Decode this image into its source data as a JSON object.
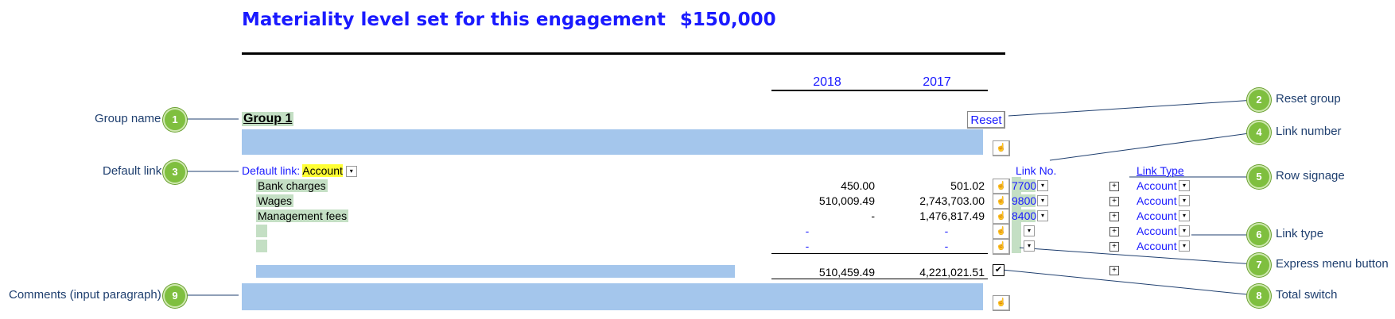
{
  "header": {
    "title": "Materiality level set for this engagement",
    "amount": "$150,000",
    "years": [
      "2018",
      "2017"
    ]
  },
  "group": {
    "name": "Group 1",
    "reset_label": "Reset",
    "default_link_label": "Default link:",
    "default_link_value": "Account",
    "link_no_header": "Link No.",
    "link_type_header": "Link Type",
    "rows": [
      {
        "label": "Bank charges",
        "y2018": "450.00",
        "y2017": "501.02",
        "link_no": "7700",
        "link_type": "Account"
      },
      {
        "label": "Wages",
        "y2018": "510,009.49",
        "y2017": "2,743,703.00",
        "link_no": "9800",
        "link_type": "Account"
      },
      {
        "label": "Management fees",
        "y2018": "-",
        "y2017": "1,476,817.49",
        "link_no": "8400",
        "link_type": "Account"
      },
      {
        "label": "",
        "y2018": "-",
        "y2017": "-",
        "link_no": "",
        "link_type": "Account"
      },
      {
        "label": "",
        "y2018": "-",
        "y2017": "-",
        "link_no": "",
        "link_type": "Account"
      }
    ],
    "total_2018": "510,459.49",
    "total_2017": "4,221,021.51"
  },
  "callouts": [
    {
      "num": "1",
      "label": "Group name"
    },
    {
      "num": "2",
      "label": "Reset group"
    },
    {
      "num": "3",
      "label": "Default link"
    },
    {
      "num": "4",
      "label": "Link number"
    },
    {
      "num": "5",
      "label": "Row signage"
    },
    {
      "num": "6",
      "label": "Link type"
    },
    {
      "num": "7",
      "label": "Express menu button"
    },
    {
      "num": "8",
      "label": "Total switch"
    },
    {
      "num": "9",
      "label": "Comments (input paragraph)"
    }
  ],
  "colors": {
    "accent_blue": "#1a1aff",
    "bar_blue": "#a4c6ec",
    "cell_green": "#c4dfc4",
    "badge_green": "#7fbf3f",
    "callout_text": "#1f3f6f"
  },
  "icons": {
    "express_menu": "hand-pointer-icon",
    "dropdown": "chevron-down-icon",
    "sign_toggle": "plus-icon"
  }
}
